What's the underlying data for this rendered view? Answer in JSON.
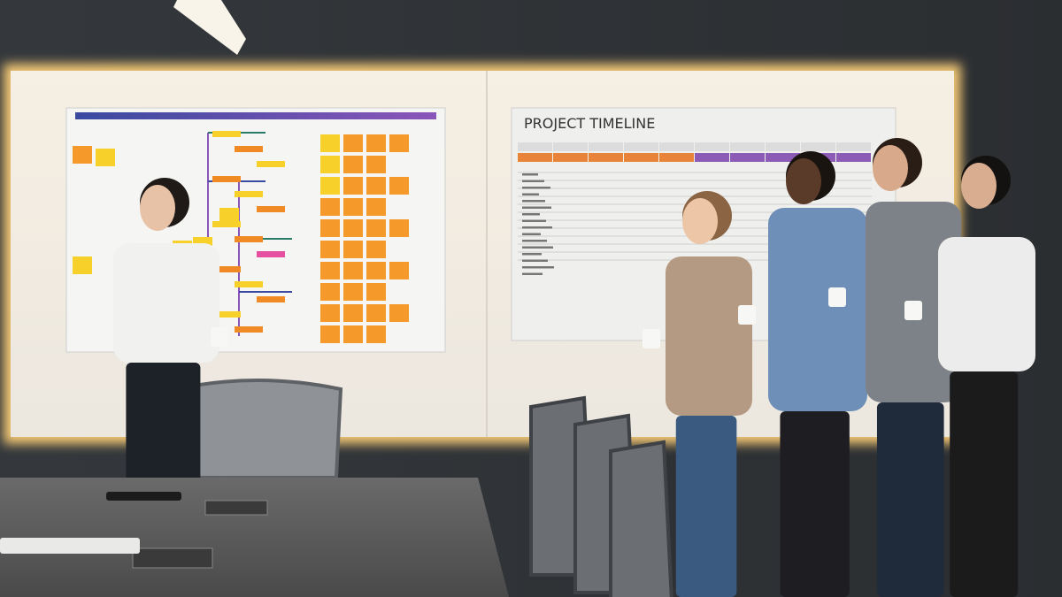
{
  "scene": {
    "board_title": "PROJECT TIMELINE"
  }
}
